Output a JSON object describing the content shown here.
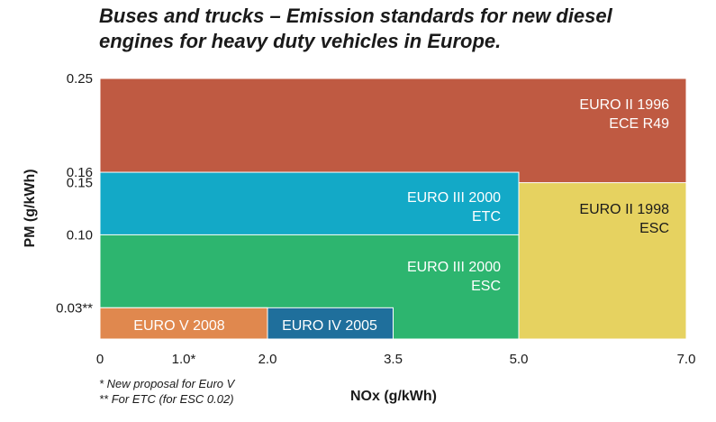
{
  "chart_data": {
    "type": "heatmap",
    "title": [
      "Buses and trucks – Emission standards for new diesel",
      "engines for heavy duty vehicles in Europe."
    ],
    "xlabel": "NOx (g/kWh)",
    "ylabel": "PM (g/kWh)",
    "x_ticks": [
      {
        "value": 0,
        "label": "0"
      },
      {
        "value": 1.0,
        "label": "1.0*"
      },
      {
        "value": 2.0,
        "label": "2.0"
      },
      {
        "value": 3.5,
        "label": "3.5"
      },
      {
        "value": 5.0,
        "label": "5.0"
      },
      {
        "value": 7.0,
        "label": "7.0"
      }
    ],
    "y_ticks": [
      {
        "value": 0.03,
        "label": "0.03**"
      },
      {
        "value": 0.1,
        "label": "0.10"
      },
      {
        "value": 0.15,
        "label": "0.15"
      },
      {
        "value": 0.16,
        "label": "0.16"
      },
      {
        "value": 0.25,
        "label": "0.25"
      }
    ],
    "regions": [
      {
        "name": "euro-ii-1996",
        "lines": [
          "EURO II 1996",
          "ECE R49"
        ],
        "nox_max": 7.0,
        "pm_max": 0.25,
        "color": "#bf5a42",
        "text_color": "#ffffff"
      },
      {
        "name": "euro-ii-1998",
        "lines": [
          "EURO II 1998",
          "ESC"
        ],
        "nox_max": 7.0,
        "pm_max": 0.15,
        "color": "#e6d260",
        "text_color": "#1a1a1a"
      },
      {
        "name": "euro-iii-2000-etc",
        "lines": [
          "EURO III 2000",
          "ETC"
        ],
        "nox_max": 5.0,
        "pm_max": 0.16,
        "color": "#13a9c7",
        "text_color": "#ffffff"
      },
      {
        "name": "euro-iii-2000-esc",
        "lines": [
          "EURO III 2000",
          "ESC"
        ],
        "nox_max": 5.0,
        "pm_max": 0.1,
        "color": "#2db56f",
        "text_color": "#ffffff"
      },
      {
        "name": "euro-iv-2005",
        "lines": [
          "EURO IV 2005"
        ],
        "nox_max": 3.5,
        "pm_max": 0.03,
        "color": "#1f6f9c",
        "text_color": "#ffffff"
      },
      {
        "name": "euro-v-2008",
        "lines": [
          "EURO V 2008"
        ],
        "nox_max": 2.0,
        "pm_max": 0.03,
        "color": "#e0884e",
        "text_color": "#ffffff"
      }
    ],
    "footnotes": [
      "* New proposal for Euro V",
      "** For ETC (for ESC 0.02)"
    ]
  }
}
